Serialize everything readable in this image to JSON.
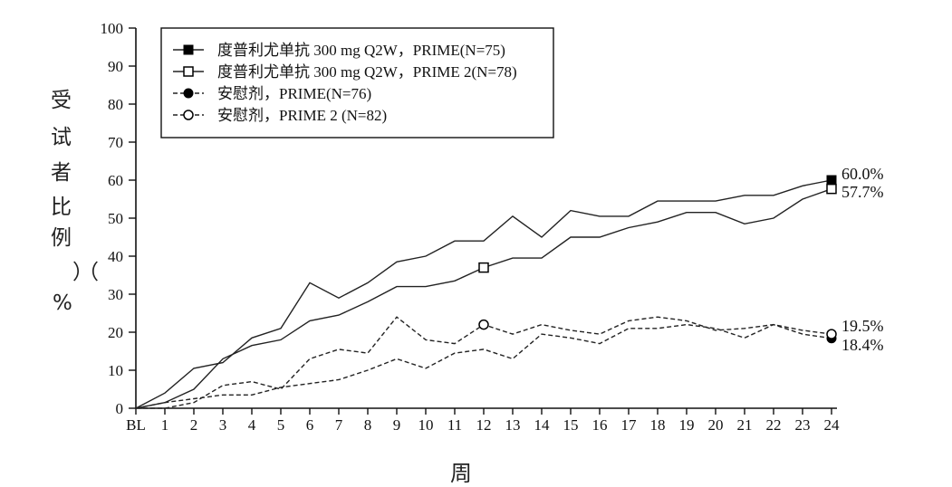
{
  "chart_data": {
    "type": "line",
    "ylabel": "受试者比例（%）",
    "xlabel": "周",
    "ylim": [
      0,
      100
    ],
    "yticks": [
      0,
      10,
      20,
      30,
      40,
      50,
      60,
      70,
      80,
      90,
      100
    ],
    "categories": [
      "BL",
      "1",
      "2",
      "3",
      "4",
      "5",
      "6",
      "7",
      "8",
      "9",
      "10",
      "11",
      "12",
      "13",
      "14",
      "15",
      "16",
      "17",
      "18",
      "19",
      "20",
      "21",
      "22",
      "23",
      "24"
    ],
    "legend_position": "top-left",
    "grid": false,
    "series": [
      {
        "name": "度普利尤单抗 300 mg Q2W，PRIME(N=75)",
        "line_style": "solid",
        "marker": "filled-square",
        "marker_weeks": [
          "24"
        ],
        "values": [
          0,
          4,
          10.5,
          12,
          18.5,
          21,
          33,
          29,
          33,
          38.5,
          40,
          44,
          44,
          50.5,
          45,
          52,
          50.5,
          50.5,
          54.5,
          54.5,
          54.5,
          56,
          56,
          58.5,
          60.0
        ],
        "end_label": "60.0%"
      },
      {
        "name": "度普利尤单抗 300 mg Q2W，PRIME 2(N=78)",
        "line_style": "solid",
        "marker": "open-square",
        "marker_weeks": [
          "12",
          "24"
        ],
        "values": [
          0,
          1.5,
          5,
          13,
          16.5,
          18,
          23,
          24.5,
          28,
          32,
          32,
          33.5,
          37,
          39.5,
          39.5,
          45,
          45,
          47.5,
          49,
          51.5,
          51.5,
          48.5,
          50,
          55,
          57.7
        ],
        "end_label": "57.7%"
      },
      {
        "name": "安慰剂，PRIME(N=76)",
        "line_style": "dashed",
        "marker": "filled-circle",
        "marker_weeks": [
          "24"
        ],
        "values": [
          0,
          1.5,
          2.5,
          3.5,
          3.5,
          5.5,
          6.5,
          7.5,
          10,
          13,
          10.5,
          14.5,
          15.5,
          13,
          19.5,
          18.5,
          17,
          21,
          21,
          22,
          21,
          18.5,
          22,
          19.5,
          18.4
        ],
        "end_label": "18.4%"
      },
      {
        "name": "安慰剂，PRIME 2 (N=82)",
        "line_style": "dashed",
        "marker": "open-circle",
        "marker_weeks": [
          "12",
          "24"
        ],
        "values": [
          0,
          0,
          1.5,
          6,
          7,
          5,
          13,
          15.5,
          14.5,
          24,
          18,
          17,
          22,
          19.5,
          22,
          20.5,
          19.5,
          23,
          24,
          23,
          20.5,
          21,
          22,
          20.5,
          19.5
        ],
        "end_label": "19.5%"
      }
    ]
  }
}
